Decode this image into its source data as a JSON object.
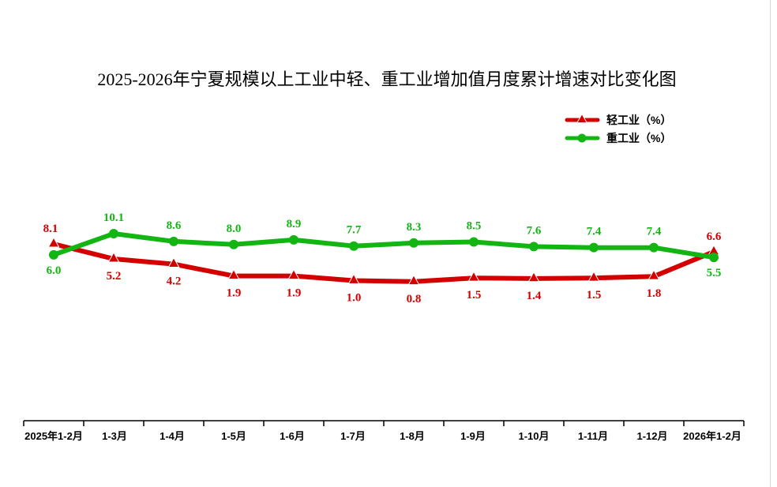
{
  "chart_data": {
    "type": "line",
    "title": "2025-2026年宁夏规模以上工业中轻、重工业增加值月度累计增速对比变化图",
    "categories": [
      "2025年1-2月",
      "1-3月",
      "1-4月",
      "1-5月",
      "1-6月",
      "1-7月",
      "1-8月",
      "1-9月",
      "1-10月",
      "1-11月",
      "1-12月",
      "2026年1-2月"
    ],
    "series": [
      {
        "name": "轻工业（%）",
        "color": "#d40000",
        "marker": "triangle",
        "values": [
          8.1,
          5.2,
          4.2,
          1.9,
          1.9,
          1.0,
          0.8,
          1.5,
          1.4,
          1.5,
          1.8,
          6.6
        ],
        "labels": [
          "8.1",
          "5.2",
          "4.2",
          "1.9",
          "1.9",
          "1.0",
          "0.8",
          "1.5",
          "1.4",
          "1.5",
          "1.8",
          "6.6"
        ]
      },
      {
        "name": "重工业（%）",
        "color": "#13b513",
        "marker": "circle",
        "values": [
          6.0,
          10.1,
          8.6,
          8.0,
          8.9,
          7.7,
          8.3,
          8.5,
          7.6,
          7.4,
          7.4,
          5.5
        ],
        "labels": [
          "6.0",
          "10.1",
          "8.6",
          "8.0",
          "8.9",
          "7.7",
          "8.3",
          "8.5",
          "7.6",
          "7.4",
          "7.4",
          "5.5"
        ]
      }
    ],
    "xlabel": "",
    "ylabel": "",
    "ylim": [
      -50,
      50
    ],
    "grid": false,
    "legend": "top-right",
    "y_axis_visible": false
  }
}
